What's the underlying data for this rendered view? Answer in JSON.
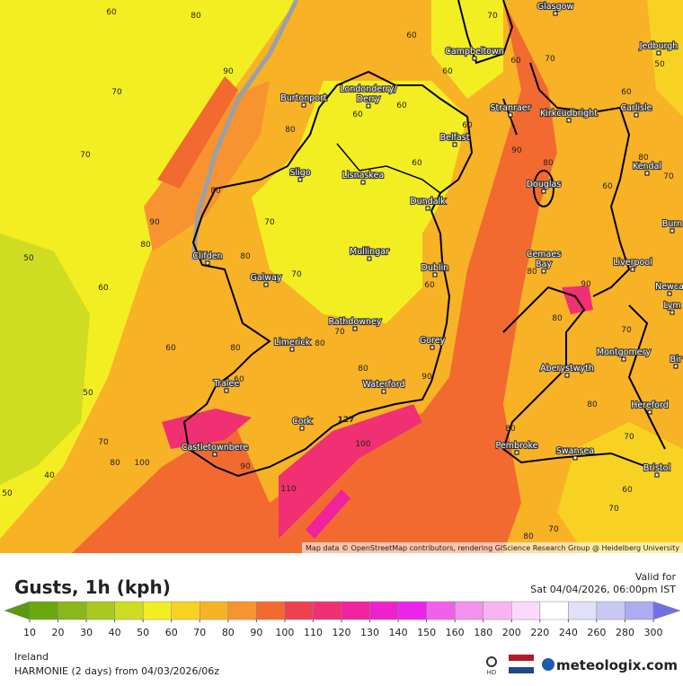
{
  "map": {
    "attribution": "Map data © OpenStreetMap contributors, rendering GIScience Research Group @ Heidelberg University",
    "places": [
      "Glasgow",
      "Campbeltown",
      "Jedburgh",
      "Burtonport",
      "Londonderry/",
      "Derry",
      "Stranraer",
      "Kirkcudbright",
      "Carlisle",
      "Belfast",
      "Sligo",
      "Lisnaskea",
      "Kendal",
      "Douglas",
      "Dundalk",
      "Burn",
      "Clifden",
      "Mullingar",
      "Cemaes",
      "Bay",
      "Liverpool",
      "Dublin",
      "Galway",
      "Newca",
      "Lym",
      "Rathdowney",
      "Limerick",
      "Gorey",
      "Montgomery",
      "Bir",
      "Aberystwyth",
      "Tralee",
      "Waterford",
      "Hereford",
      "Cork",
      "Pembroke",
      "Castletownbere",
      "Swansea",
      "Bristol"
    ],
    "contour_labels": [
      "60",
      "80",
      "70",
      "90",
      "70",
      "90",
      "80",
      "50",
      "60",
      "60",
      "50",
      "70",
      "40",
      "80",
      "100",
      "50",
      "60",
      "60",
      "70",
      "60",
      "70",
      "60",
      "60",
      "80",
      "60",
      "60",
      "70",
      "80",
      "80",
      "70",
      "60",
      "80",
      "70",
      "80",
      "60",
      "80",
      "90",
      "100",
      "90",
      "110",
      "127",
      "90",
      "80",
      "80",
      "90",
      "80",
      "60",
      "50",
      "80",
      "70",
      "60",
      "70",
      "80",
      "70",
      "60",
      "70",
      "80",
      "80",
      "70"
    ]
  },
  "panel": {
    "title": "Gusts, 1h (kph)",
    "valid_label": "Valid for",
    "valid_time": "Sat 04/04/2026, 06:00pm IST",
    "region": "Ireland",
    "model": "HARMONIE (2 days) from 04/03/2026/06z",
    "hd": "HD",
    "brand": "meteologix.com"
  },
  "legend": {
    "ticks": [
      10,
      20,
      30,
      40,
      50,
      60,
      70,
      80,
      90,
      100,
      110,
      120,
      130,
      140,
      150,
      160,
      180,
      200,
      220,
      240,
      260,
      280,
      300
    ],
    "colors": [
      "#5a9a0c",
      "#6aa812",
      "#88b81a",
      "#a8c820",
      "#cedc22",
      "#f2ee22",
      "#f8d222",
      "#f8b226",
      "#f89430",
      "#f26a30",
      "#f04050",
      "#f03072",
      "#f0229e",
      "#ee22cc",
      "#ec22ec",
      "#f060ec",
      "#f490ee",
      "#f8b4f2",
      "#fadafa",
      "#ffffff",
      "#e0e0f8",
      "#c8c8f2",
      "#acacf0",
      "#9494ee",
      "#7070e6"
    ]
  }
}
